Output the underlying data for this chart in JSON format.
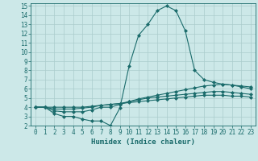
{
  "xlabel": "Humidex (Indice chaleur)",
  "background_color": "#cce8e8",
  "grid_color": "#aacccc",
  "line_color": "#1a6b6b",
  "xlim": [
    -0.5,
    23.5
  ],
  "ylim": [
    2,
    15.3
  ],
  "xticks": [
    0,
    1,
    2,
    3,
    4,
    5,
    6,
    7,
    8,
    9,
    10,
    11,
    12,
    13,
    14,
    15,
    16,
    17,
    18,
    19,
    20,
    21,
    22,
    23
  ],
  "yticks": [
    2,
    3,
    4,
    5,
    6,
    7,
    8,
    9,
    10,
    11,
    12,
    13,
    14,
    15
  ],
  "lines": [
    {
      "x": [
        0,
        1,
        2,
        3,
        4,
        5,
        6,
        7,
        8,
        9,
        10,
        11,
        12,
        13,
        14,
        15,
        16,
        17,
        18,
        19,
        20,
        21,
        22,
        23
      ],
      "y": [
        4.0,
        4.0,
        3.3,
        3.0,
        3.0,
        2.7,
        2.5,
        2.5,
        2.0,
        3.9,
        8.5,
        11.8,
        13.0,
        14.5,
        15.0,
        14.5,
        12.3,
        8.0,
        7.0,
        6.7,
        6.5,
        6.4,
        6.3,
        6.2
      ]
    },
    {
      "x": [
        0,
        1,
        2,
        3,
        4,
        5,
        6,
        7,
        8,
        9,
        10,
        11,
        12,
        13,
        14,
        15,
        16,
        17,
        18,
        19,
        20,
        21,
        22,
        23
      ],
      "y": [
        4.0,
        4.0,
        3.6,
        3.5,
        3.5,
        3.5,
        3.7,
        4.0,
        4.0,
        4.3,
        4.6,
        4.9,
        5.1,
        5.3,
        5.5,
        5.7,
        5.9,
        6.1,
        6.3,
        6.4,
        6.5,
        6.4,
        6.2,
        6.0
      ]
    },
    {
      "x": [
        0,
        1,
        2,
        3,
        4,
        5,
        6,
        7,
        8,
        9,
        10,
        11,
        12,
        13,
        14,
        15,
        16,
        17,
        18,
        19,
        20,
        21,
        22,
        23
      ],
      "y": [
        4.0,
        4.0,
        3.8,
        3.8,
        3.8,
        3.9,
        4.0,
        4.2,
        4.3,
        4.4,
        4.6,
        4.8,
        5.0,
        5.1,
        5.2,
        5.3,
        5.4,
        5.5,
        5.6,
        5.7,
        5.7,
        5.6,
        5.5,
        5.4
      ]
    },
    {
      "x": [
        0,
        1,
        2,
        3,
        4,
        5,
        6,
        7,
        8,
        9,
        10,
        11,
        12,
        13,
        14,
        15,
        16,
        17,
        18,
        19,
        20,
        21,
        22,
        23
      ],
      "y": [
        4.0,
        4.0,
        4.0,
        4.0,
        4.0,
        4.0,
        4.1,
        4.2,
        4.3,
        4.4,
        4.5,
        4.6,
        4.7,
        4.8,
        4.9,
        5.0,
        5.1,
        5.2,
        5.3,
        5.3,
        5.3,
        5.2,
        5.2,
        5.1
      ]
    }
  ],
  "marker_size": 2.0,
  "linewidth": 0.8,
  "tick_fontsize": 5.5,
  "xlabel_fontsize": 6.5
}
